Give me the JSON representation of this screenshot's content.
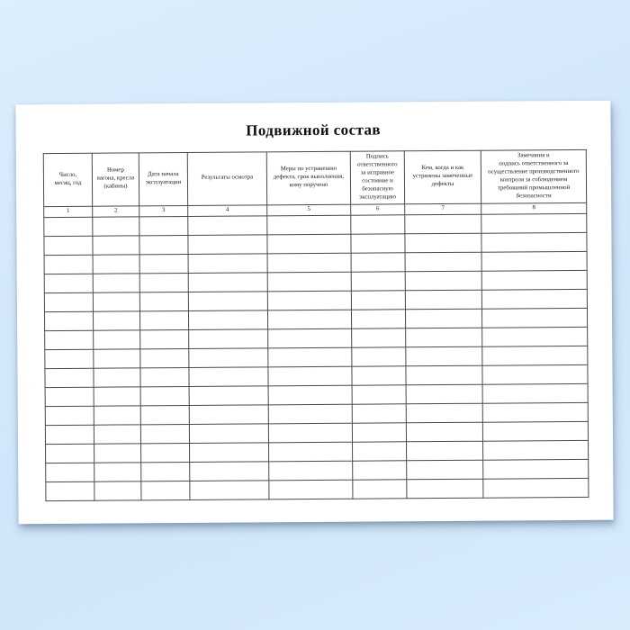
{
  "document": {
    "title": "Подвижной состав",
    "table": {
      "columns": [
        {
          "number": "1",
          "header": "Число,\nмесяц, год"
        },
        {
          "number": "2",
          "header": "Номер\nвагона, кресла\n(кабины)"
        },
        {
          "number": "3",
          "header": "Дата начала\nэксплуатации"
        },
        {
          "number": "4",
          "header": "Результаты осмотра"
        },
        {
          "number": "5",
          "header": "Меры по устранению\nдефекта, срок выполнения,\nкому поручено"
        },
        {
          "number": "6",
          "header": "Подпись\nответственного\nза исправное\nсостояние и\nбезопасную\nэксплуатацию"
        },
        {
          "number": "7",
          "header": "Кем, когда и как\nустранены замеченные\nдефекты"
        },
        {
          "number": "8",
          "header": "Замечания и\nподпись ответственного за\nосуществление производственного\nконтроля за соблюдением\nтребований промышленной\nбезопасности"
        }
      ],
      "blank_row_count": 15,
      "blank_cells_per_row": 8
    },
    "colors": {
      "background_blue": "#d2e7fa",
      "paper": "#ffffff",
      "table_border": "#4a4a4a",
      "text": "#1a1a1a"
    }
  }
}
